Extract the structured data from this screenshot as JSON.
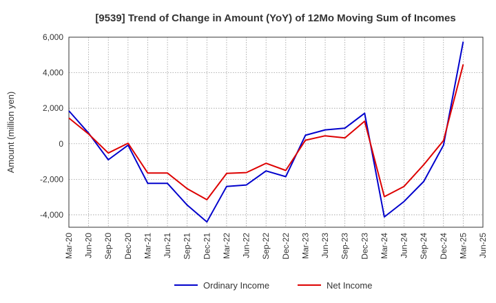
{
  "chart_data": {
    "type": "line",
    "title": "[9539]  Trend of Change in Amount (YoY) of 12Mo Moving Sum of Incomes",
    "xlabel": "",
    "ylabel": "Amount (million yen)",
    "ylim": [
      -4700,
      6000
    ],
    "yticks": [
      6000,
      4000,
      2000,
      0,
      -2000,
      -4000
    ],
    "ytick_labels": [
      "6,000",
      "4,000",
      "2,000",
      "0",
      "-2,000",
      "-4,000"
    ],
    "x_tick_labels": [
      "Mar-20",
      "Jun-20",
      "Sep-20",
      "Dec-20",
      "Mar-21",
      "Jun-21",
      "Sep-21",
      "Dec-21",
      "Mar-22",
      "Jun-22",
      "Sep-22",
      "Dec-22",
      "Mar-23",
      "Jun-23",
      "Sep-23",
      "Dec-23",
      "Mar-24",
      "Jun-24",
      "Sep-24",
      "Dec-24",
      "Mar-25",
      "Jun-25"
    ],
    "grid": true,
    "legend_position": "bottom",
    "series": [
      {
        "name": "Ordinary Income",
        "color": "#0000cc",
        "values": [
          1850,
          600,
          -900,
          -80,
          -2230,
          -2230,
          -3450,
          -4400,
          -2400,
          -2320,
          -1530,
          -1850,
          480,
          780,
          880,
          1720,
          -4120,
          -3250,
          -2120,
          -80,
          5750,
          null
        ]
      },
      {
        "name": "Net Income",
        "color": "#dd0000",
        "values": [
          1450,
          550,
          -520,
          30,
          -1650,
          -1650,
          -2530,
          -3150,
          -1670,
          -1620,
          -1100,
          -1500,
          200,
          450,
          330,
          1270,
          -2980,
          -2400,
          -1180,
          180,
          4470,
          null
        ]
      }
    ]
  }
}
